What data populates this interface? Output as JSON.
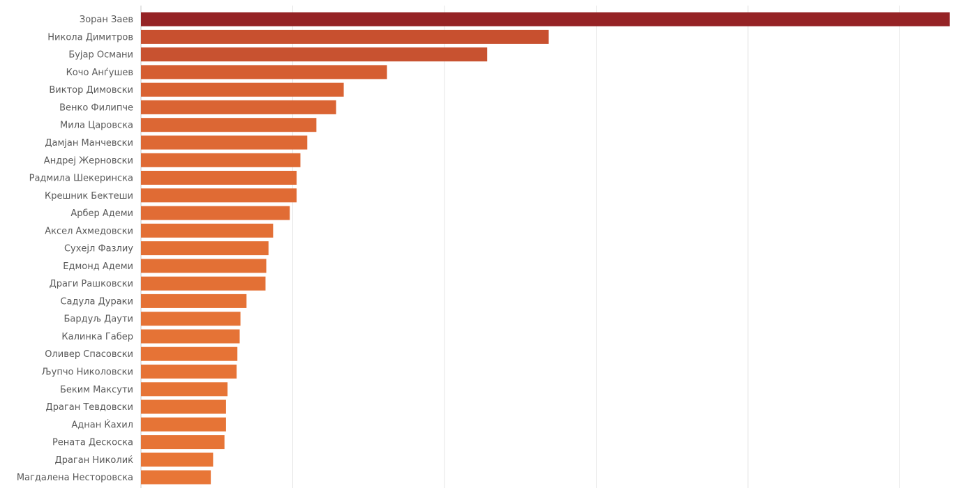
{
  "chart_data": {
    "type": "bar",
    "orientation": "horizontal",
    "categories": [
      "Зоран Заев",
      "Никола Димитров",
      "Бујар Османи",
      "Кочо Анѓушев",
      "Виктор Димовски",
      "Венко Филипче",
      "Мила Царовска",
      "Дамјан Манчевски",
      "Андреј Жерновски",
      "Радмила Шекеринска",
      "Крешник Бектеши",
      "Арбер Адеми",
      "Аксел Ахмедовски",
      "Сухејл Фазлиу",
      "Едмонд Адеми",
      "Драги Рашковски",
      "Садула Дураки",
      "Бардуљ Даути",
      "Калинка Габер",
      "Оливер Спасовски",
      "Љупчо Николовски",
      "Беким Максути",
      "Драган Тевдовски",
      "Аднан Ќахил",
      "Рената Дескоска",
      "Драган Николиќ",
      "Магдалена Несторовска"
    ],
    "values": [
      10.65,
      5.37,
      4.56,
      3.24,
      2.67,
      2.57,
      2.31,
      2.19,
      2.1,
      2.05,
      2.05,
      1.96,
      1.74,
      1.68,
      1.65,
      1.64,
      1.39,
      1.31,
      1.3,
      1.27,
      1.26,
      1.14,
      1.12,
      1.12,
      1.1,
      0.95,
      0.92
    ],
    "xlim": [
      0,
      10.65
    ],
    "grid": true,
    "legend": "none",
    "colors": {
      "highlight": "#952325",
      "ramp": [
        "#952325",
        "#c8502f",
        "#c85230",
        "#d55e32",
        "#d96333",
        "#da6433",
        "#dc6734",
        "#de6934",
        "#df6a34",
        "#e06b34",
        "#e06b34",
        "#e16c35",
        "#e36f35",
        "#e37035",
        "#e37035",
        "#e37035",
        "#e57235",
        "#e57336",
        "#e57336",
        "#e67336",
        "#e67336",
        "#e67436",
        "#e67436",
        "#e67436",
        "#e67436",
        "#e87637",
        "#e87637"
      ]
    }
  }
}
